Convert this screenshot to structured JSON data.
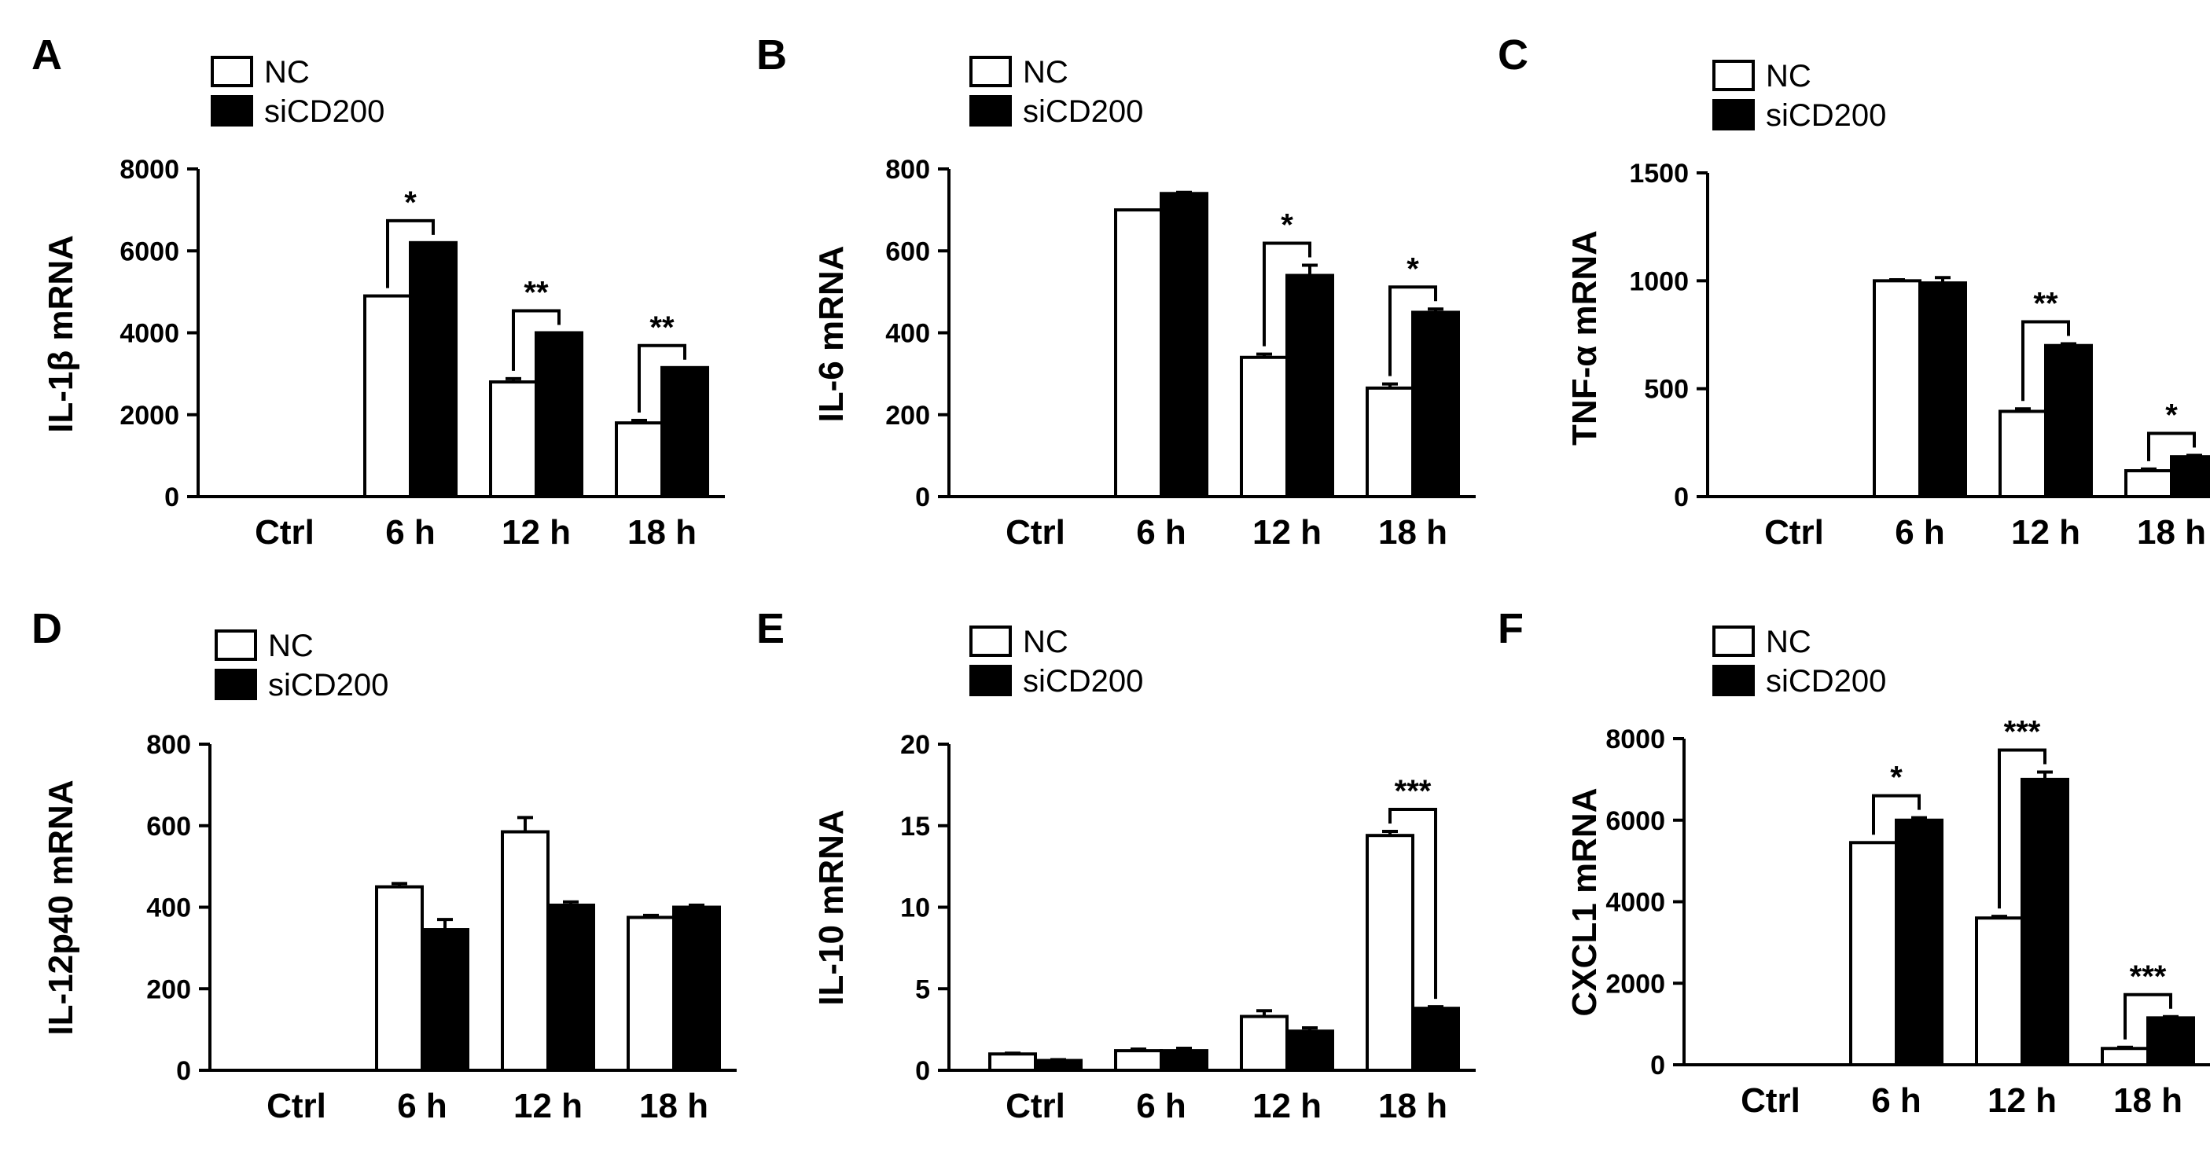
{
  "chart_data": [
    {
      "panel": "A",
      "type": "bar",
      "ylabel": "IL-1β mRNA",
      "categories": [
        "Ctrl",
        "6 h",
        "12 h",
        "18 h"
      ],
      "ylim": [
        0,
        8000
      ],
      "yticks": [
        0,
        2000,
        4000,
        6000,
        8000
      ],
      "series": [
        {
          "name": "NC",
          "color": "#ffffff",
          "values": [
            0,
            4900,
            2800,
            1800
          ],
          "errors": [
            0,
            0,
            80,
            60
          ]
        },
        {
          "name": "siCD200",
          "color": "#000000",
          "values": [
            0,
            6200,
            4000,
            3150
          ],
          "errors": [
            0,
            0,
            0,
            0
          ]
        }
      ],
      "significance": [
        {
          "index": 1,
          "label": "*"
        },
        {
          "index": 2,
          "label": "**"
        },
        {
          "index": 3,
          "label": "**"
        }
      ]
    },
    {
      "panel": "B",
      "type": "bar",
      "ylabel": "IL-6 mRNA",
      "categories": [
        "Ctrl",
        "6 h",
        "12 h",
        "18 h"
      ],
      "ylim": [
        0,
        800
      ],
      "yticks": [
        0,
        200,
        400,
        600,
        800
      ],
      "series": [
        {
          "name": "NC",
          "color": "#ffffff",
          "values": [
            0,
            700,
            340,
            265
          ],
          "errors": [
            0,
            0,
            8,
            10
          ]
        },
        {
          "name": "siCD200",
          "color": "#000000",
          "values": [
            0,
            740,
            540,
            450
          ],
          "errors": [
            0,
            3,
            25,
            8
          ]
        }
      ],
      "significance": [
        {
          "index": 2,
          "label": "*"
        },
        {
          "index": 3,
          "label": "*"
        }
      ]
    },
    {
      "panel": "C",
      "type": "bar",
      "ylabel": "TNF-α mRNA",
      "categories": [
        "Ctrl",
        "6 h",
        "12 h",
        "18 h"
      ],
      "ylim": [
        0,
        1500
      ],
      "yticks": [
        0,
        500,
        1000,
        1500
      ],
      "series": [
        {
          "name": "NC",
          "color": "#ffffff",
          "values": [
            0,
            1000,
            395,
            120
          ],
          "errors": [
            0,
            5,
            12,
            8
          ]
        },
        {
          "name": "siCD200",
          "color": "#000000",
          "values": [
            0,
            990,
            700,
            185
          ],
          "errors": [
            0,
            25,
            8,
            6
          ]
        }
      ],
      "significance": [
        {
          "index": 2,
          "label": "**"
        },
        {
          "index": 3,
          "label": "*"
        }
      ]
    },
    {
      "panel": "D",
      "type": "bar",
      "ylabel": "IL-12p40 mRNA",
      "categories": [
        "Ctrl",
        "6 h",
        "12 h",
        "18 h"
      ],
      "ylim": [
        0,
        800
      ],
      "yticks": [
        0,
        200,
        400,
        600,
        800
      ],
      "series": [
        {
          "name": "NC",
          "color": "#ffffff",
          "values": [
            0,
            450,
            585,
            375
          ],
          "errors": [
            0,
            8,
            35,
            5
          ]
        },
        {
          "name": "siCD200",
          "color": "#000000",
          "values": [
            0,
            345,
            405,
            400
          ],
          "errors": [
            0,
            25,
            8,
            5
          ]
        }
      ],
      "significance": []
    },
    {
      "panel": "E",
      "type": "bar",
      "ylabel": "IL-10 mRNA",
      "categories": [
        "Ctrl",
        "6 h",
        "12 h",
        "18 h"
      ],
      "ylim": [
        0,
        20
      ],
      "yticks": [
        0,
        5,
        10,
        15,
        20
      ],
      "series": [
        {
          "name": "NC",
          "color": "#ffffff",
          "values": [
            1.0,
            1.2,
            3.3,
            14.4
          ],
          "errors": [
            0.05,
            0.1,
            0.35,
            0.25
          ]
        },
        {
          "name": "siCD200",
          "color": "#000000",
          "values": [
            0.6,
            1.2,
            2.4,
            3.8
          ],
          "errors": [
            0.05,
            0.15,
            0.2,
            0.1
          ]
        }
      ],
      "significance": [
        {
          "index": 3,
          "label": "***"
        }
      ]
    },
    {
      "panel": "F",
      "type": "bar",
      "ylabel": "CXCL1 mRNA",
      "categories": [
        "Ctrl",
        "6 h",
        "12 h",
        "18 h"
      ],
      "ylim": [
        0,
        8000
      ],
      "yticks": [
        0,
        2000,
        4000,
        6000,
        8000
      ],
      "series": [
        {
          "name": "NC",
          "color": "#ffffff",
          "values": [
            0,
            5450,
            3600,
            400
          ],
          "errors": [
            0,
            0,
            40,
            30
          ]
        },
        {
          "name": "siCD200",
          "color": "#000000",
          "values": [
            0,
            6000,
            7000,
            1150
          ],
          "errors": [
            0,
            60,
            180,
            30
          ]
        }
      ],
      "significance": [
        {
          "index": 1,
          "label": "*"
        },
        {
          "index": 2,
          "label": "***"
        },
        {
          "index": 3,
          "label": "***"
        }
      ]
    }
  ]
}
